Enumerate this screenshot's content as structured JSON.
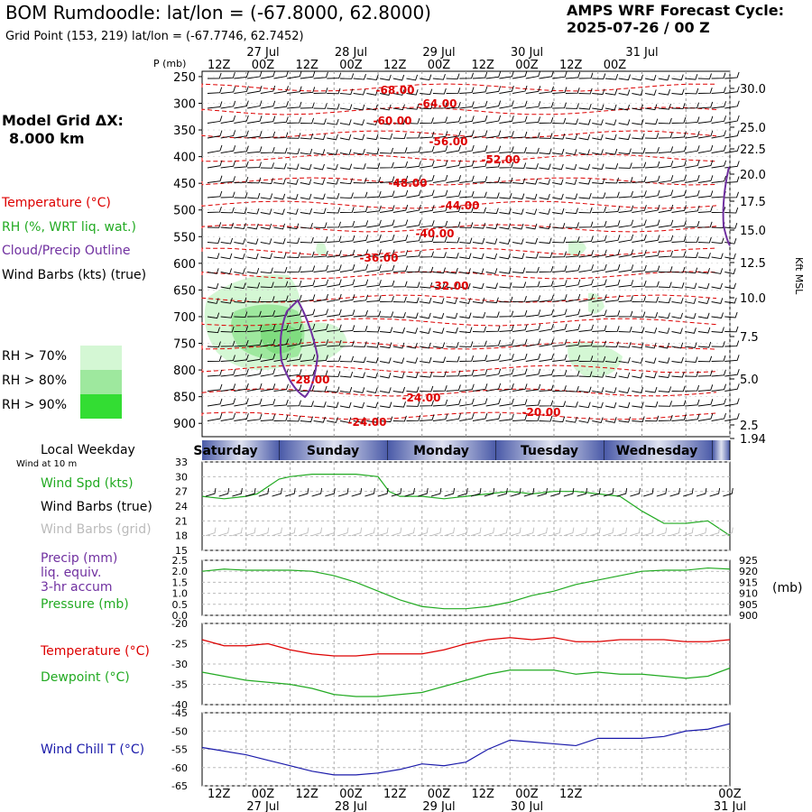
{
  "header": {
    "title": "BOM Rumdoodle:  lat/lon = (-67.8000, 62.8000)",
    "subtitle": "Grid Point (153, 219) lat/lon = (-67.7746, 62.7452)",
    "cycle_line1": "AMPS WRF Forecast Cycle:",
    "cycle_line2": "2025-07-26 / 00  Z"
  },
  "sidebar": {
    "grid_label_line1": "Model Grid ΔX:",
    "grid_label_line2": "8.000 km",
    "legend": [
      {
        "label": "Temperature (°C)",
        "color": "#dd0000"
      },
      {
        "label": "RH (%, WRT liq. wat.)",
        "color": "#22aa22"
      },
      {
        "label": "Cloud/Precip Outline",
        "color": "#7030a0"
      },
      {
        "label": "Wind Barbs (kts) (true)",
        "color": "#000000"
      }
    ],
    "rh_legend": [
      {
        "label": "RH > 70%",
        "color": "#d4f7d4"
      },
      {
        "label": "RH > 80%",
        "color": "#9ee89e"
      },
      {
        "label": "RH > 90%",
        "color": "#33dd33"
      }
    ],
    "local_weekday": "Local Weekday",
    "wind_at": "Wind at 10 m",
    "panel_labels": {
      "wind_spd": "Wind Spd (kts)",
      "wind_barbs_true": "Wind Barbs (true)",
      "wind_barbs_grid": "Wind Barbs (grid)",
      "precip1": "Precip (mm)",
      "precip2": "liq. equiv.",
      "precip3": "3-hr accum",
      "pressure": "Pressure (mb)",
      "temperature": "Temperature (°C)",
      "dewpoint": "Dewpoint (°C)",
      "windchill": "Wind Chill T (°C)"
    },
    "mb_unit": "(mb)"
  },
  "chart_data": [
    {
      "type": "heatmap",
      "name": "time-height cross section",
      "ylabel_left": "P (mb)",
      "ylabel_right": "Kft MSL",
      "pressure_ticks": [
        250,
        300,
        350,
        400,
        450,
        500,
        550,
        600,
        650,
        700,
        750,
        800,
        850,
        900
      ],
      "height_ticks": [
        "30.0",
        "25.0",
        "22.5",
        "20.0",
        "17.5",
        "15.0",
        "12.5",
        "10.0",
        "7.5",
        "5.0",
        "2.5",
        "1.94"
      ],
      "time_ticks_top": [
        "12Z",
        "00Z",
        "12Z",
        "00Z",
        "12Z",
        "00Z",
        "12Z",
        "00Z",
        "12Z",
        "00Z"
      ],
      "date_labels": [
        "27 Jul",
        "28 Jul",
        "29 Jul",
        "30 Jul",
        "31 Jul"
      ],
      "temperature_contour_labels": [
        "-68.00",
        "-64.00",
        "-60.00",
        "-56.00",
        "-52.00",
        "-48.00",
        "-44.00",
        "-40.00",
        "-36.00",
        "-32.00",
        "-28.00",
        "-24.00",
        "-24.00",
        "-20.00"
      ]
    },
    {
      "type": "table",
      "name": "weekday bar",
      "days": [
        "Saturday",
        "Sunday",
        "Monday",
        "Tuesday",
        "Wednesday"
      ]
    },
    {
      "type": "line",
      "name": "wind speed",
      "ylim": [
        15,
        33
      ],
      "yticks": [
        15,
        18,
        21,
        24,
        27,
        30,
        33
      ],
      "x_hours": [
        0,
        6,
        12,
        15,
        18,
        21,
        24,
        30,
        36,
        42,
        48,
        51,
        54,
        60,
        66,
        72,
        78,
        84,
        90,
        96,
        102,
        108,
        114,
        120,
        126,
        132,
        138,
        144
      ],
      "values": [
        26,
        25.5,
        26,
        26.5,
        28,
        29.5,
        30,
        30.5,
        30.5,
        30.5,
        30,
        27,
        26,
        26,
        25.5,
        26,
        26.5,
        27,
        26.5,
        27,
        27,
        26.5,
        26,
        23,
        20.5,
        20.5,
        21,
        18
      ]
    },
    {
      "type": "line",
      "name": "pressure",
      "ylim_precip": [
        0,
        2.5
      ],
      "yticks_precip": [
        "0.0",
        "0.5",
        "1.0",
        "1.5",
        "2.0",
        "2.5"
      ],
      "ylim_pressure": [
        900,
        925
      ],
      "yticks_pressure": [
        900,
        905,
        910,
        915,
        920,
        925
      ],
      "x_hours": [
        0,
        6,
        12,
        18,
        24,
        30,
        36,
        42,
        48,
        54,
        60,
        66,
        72,
        78,
        84,
        90,
        96,
        102,
        108,
        114,
        120,
        126,
        132,
        138,
        144
      ],
      "values": [
        920,
        921,
        920.5,
        920.5,
        920.5,
        920,
        918,
        915,
        911,
        907,
        904,
        903,
        903,
        904,
        906,
        909,
        911,
        914,
        916,
        918,
        920,
        920.5,
        920.5,
        921.5,
        921
      ]
    },
    {
      "type": "line",
      "name": "temperature and dewpoint",
      "ylim": [
        -40,
        -20
      ],
      "yticks": [
        -20,
        -25,
        -30,
        -35,
        -40
      ],
      "x_hours": [
        0,
        6,
        12,
        18,
        24,
        30,
        36,
        42,
        48,
        54,
        60,
        66,
        72,
        78,
        84,
        90,
        96,
        102,
        108,
        114,
        120,
        126,
        132,
        138,
        144
      ],
      "series": [
        {
          "name": "Temperature (°C)",
          "color": "#dd0000",
          "values": [
            -24,
            -25.5,
            -25.5,
            -25,
            -26.5,
            -27.5,
            -28,
            -28,
            -27.5,
            -27.5,
            -27.5,
            -26.5,
            -25,
            -24,
            -23.5,
            -24,
            -23.5,
            -24.5,
            -24.5,
            -24,
            -24,
            -24,
            -24.5,
            -24.5,
            -24
          ]
        },
        {
          "name": "Dewpoint (°C)",
          "color": "#22aa22",
          "values": [
            -32,
            -33,
            -34,
            -34.5,
            -35,
            -36,
            -37.5,
            -38,
            -38,
            -37.5,
            -37,
            -35.5,
            -34,
            -32.5,
            -31.5,
            -31.5,
            -31.5,
            -32.5,
            -32,
            -32.5,
            -32.5,
            -33,
            -33.5,
            -33,
            -31
          ]
        }
      ]
    },
    {
      "type": "line",
      "name": "wind chill",
      "ylim": [
        -65,
        -45
      ],
      "yticks": [
        -45,
        -50,
        -55,
        -60,
        -65
      ],
      "x_hours": [
        0,
        6,
        12,
        18,
        24,
        30,
        36,
        42,
        48,
        54,
        60,
        66,
        72,
        78,
        84,
        90,
        96,
        102,
        108,
        114,
        120,
        126,
        132,
        138,
        144
      ],
      "values": [
        -54.5,
        -55.5,
        -56.5,
        -58,
        -59.5,
        -61,
        -62,
        -62,
        -61.5,
        -60.5,
        -59,
        -59.5,
        -58.5,
        -55,
        -52.5,
        -53,
        -53.5,
        -54,
        -52,
        -52,
        -52,
        -51.5,
        -50,
        -49.5,
        -48
      ]
    }
  ],
  "bottom_axis": {
    "time_ticks": [
      "12Z",
      "00Z",
      "12Z",
      "00Z",
      "12Z",
      "00Z",
      "12Z",
      "00Z",
      "12Z",
      "00Z"
    ],
    "date_labels": [
      "27 Jul",
      "28 Jul",
      "29 Jul",
      "30 Jul",
      "31 Jul"
    ]
  }
}
